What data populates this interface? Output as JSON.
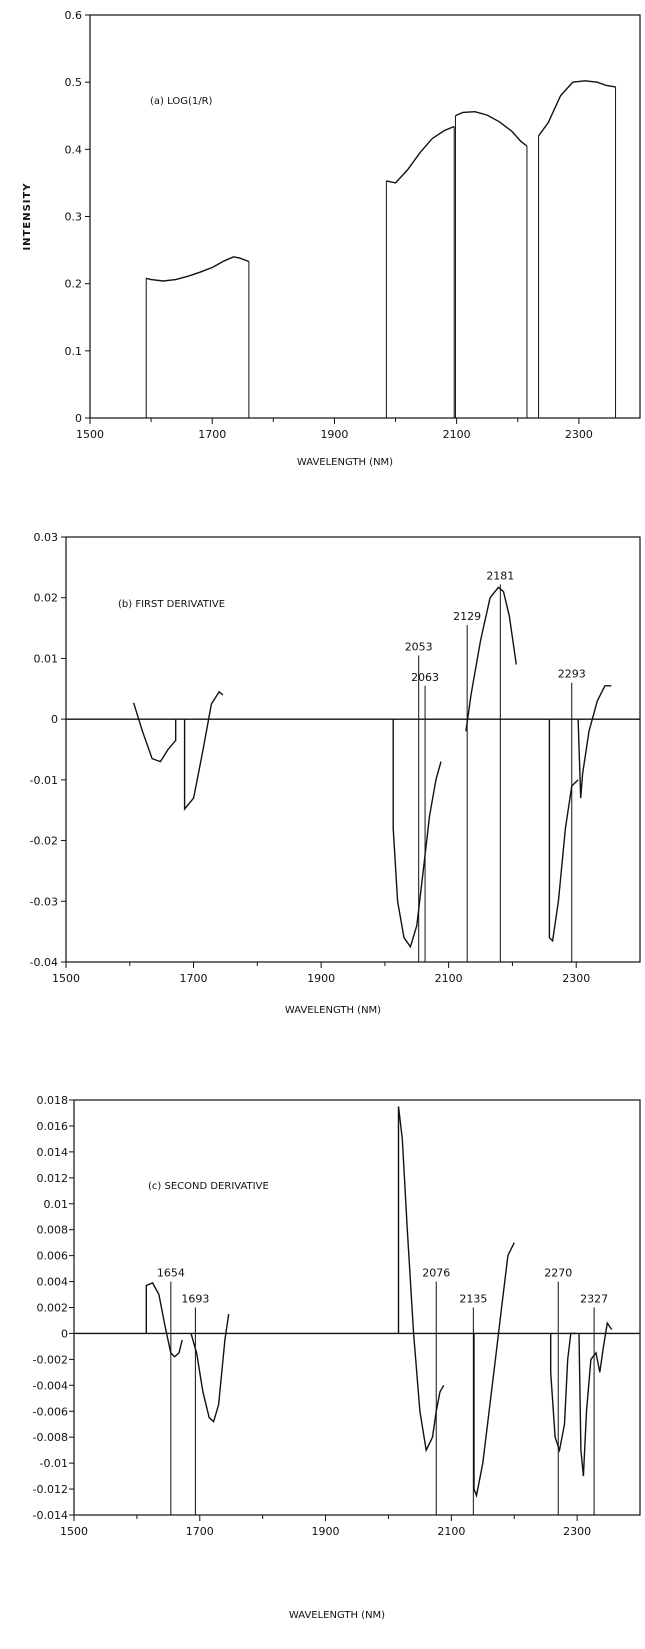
{
  "chart_data": [
    {
      "type": "line",
      "panel_label": "(a) LOG(1/R)",
      "ylabel": "INTENSITY",
      "xlabel": "WAVELENGTH (NM)",
      "xlim": [
        1500,
        2400
      ],
      "ylim": [
        0,
        0.6
      ],
      "x_ticks": [
        1500,
        1700,
        1900,
        2100,
        2300
      ],
      "y_ticks": [
        "0",
        "0.1",
        "0.2",
        "0.3",
        "0.4",
        "0.5",
        "0.6"
      ],
      "y_tick_values": [
        0,
        0.1,
        0.2,
        0.3,
        0.4,
        0.5,
        0.6
      ],
      "baseline": 0,
      "segments": [
        {
          "x": [
            1592,
            1600,
            1620,
            1640,
            1660,
            1680,
            1700,
            1720,
            1735,
            1745,
            1760
          ],
          "y": [
            0.208,
            0.206,
            0.204,
            0.206,
            0.211,
            0.217,
            0.224,
            0.234,
            0.24,
            0.238,
            0.233
          ]
        },
        {
          "x": [
            1985,
            2000,
            2020,
            2040,
            2060,
            2080,
            2096
          ],
          "y": [
            0.353,
            0.35,
            0.37,
            0.395,
            0.416,
            0.428,
            0.434
          ]
        },
        {
          "x": [
            2098,
            2110,
            2130,
            2150,
            2170,
            2190,
            2205,
            2215
          ],
          "y": [
            0.45,
            0.455,
            0.456,
            0.451,
            0.441,
            0.427,
            0.412,
            0.405
          ]
        },
        {
          "x": [
            2234,
            2250,
            2270,
            2290,
            2310,
            2330,
            2345,
            2360
          ],
          "y": [
            0.42,
            0.44,
            0.48,
            0.5,
            0.502,
            0.5,
            0.495,
            0.493
          ]
        }
      ],
      "markers": [],
      "grid": false
    },
    {
      "type": "line",
      "panel_label": "(b) FIRST DERIVATIVE",
      "ylabel": "",
      "xlabel": "WAVELENGTH (NM)",
      "xlim": [
        1500,
        2400
      ],
      "ylim": [
        -0.04,
        0.03
      ],
      "x_ticks": [
        1500,
        1700,
        1900,
        2100,
        2300
      ],
      "y_ticks": [
        "0.03",
        "0.02",
        "0.01",
        "0",
        "-0.01",
        "-0.02",
        "-0.03",
        "-0.04"
      ],
      "y_tick_values": [
        0.03,
        0.02,
        0.01,
        0,
        -0.01,
        -0.02,
        -0.03,
        -0.04
      ],
      "baseline": 0,
      "segments": [
        {
          "x": [
            1606,
            1620,
            1635,
            1648,
            1660,
            1672,
            1672
          ],
          "y": [
            0.0027,
            -0.002,
            -0.0065,
            -0.007,
            -0.005,
            -0.0035,
            0
          ]
        },
        {
          "x": [
            1686,
            1686,
            1700,
            1715,
            1728,
            1740,
            1746
          ],
          "y": [
            0,
            -0.0148,
            -0.013,
            -0.005,
            0.0025,
            0.0045,
            0.004
          ]
        },
        {
          "x": [
            2013,
            2013,
            2020,
            2030,
            2040,
            2050,
            2060,
            2070,
            2080,
            2088
          ],
          "y": [
            0,
            -0.018,
            -0.03,
            -0.036,
            -0.0375,
            -0.034,
            -0.025,
            -0.016,
            -0.01,
            -0.007
          ]
        },
        {
          "x": [
            2127,
            2135,
            2150,
            2165,
            2178,
            2186,
            2195,
            2206
          ],
          "y": [
            -0.002,
            0.004,
            0.013,
            0.02,
            0.0217,
            0.021,
            0.017,
            0.009
          ]
        },
        {
          "x": [
            2258,
            2258,
            2263,
            2272,
            2283,
            2293,
            2303
          ],
          "y": [
            0,
            -0.036,
            -0.0365,
            -0.03,
            -0.018,
            -0.011,
            -0.01
          ]
        },
        {
          "x": [
            2303,
            2307,
            2310,
            2320,
            2333,
            2345,
            2355
          ],
          "y": [
            0,
            -0.013,
            -0.009,
            -0.002,
            0.003,
            0.0055,
            0.0055
          ]
        }
      ],
      "markers": [
        {
          "x": 2053,
          "y": 0.0105,
          "label": "2053"
        },
        {
          "x": 2063,
          "y": 0.0055,
          "label": "2063"
        },
        {
          "x": 2129,
          "y": 0.0155,
          "label": "2129"
        },
        {
          "x": 2181,
          "y": 0.0222,
          "label": "2181"
        },
        {
          "x": 2293,
          "y": 0.006,
          "label": "2293"
        }
      ],
      "grid": false
    },
    {
      "type": "line",
      "panel_label": "(c) SECOND DERIVATIVE",
      "ylabel": "",
      "xlabel": "WAVELENGTH (NM)",
      "xlim": [
        1500,
        2400
      ],
      "ylim": [
        -0.014,
        0.018
      ],
      "x_ticks": [
        1500,
        1700,
        1900,
        2100,
        2300
      ],
      "y_ticks": [
        "0.018",
        "0.016",
        "0.014",
        "0.012",
        "0.01",
        "0.008",
        "0.006",
        "0.004",
        "0.002",
        "0",
        "-0.002",
        "-0.004",
        "-0.006",
        "-0.008",
        "-0.01",
        "-0.012",
        "-0.014"
      ],
      "y_tick_values": [
        0.018,
        0.016,
        0.014,
        0.012,
        0.01,
        0.008,
        0.006,
        0.004,
        0.002,
        0,
        -0.002,
        -0.004,
        -0.006,
        -0.008,
        -0.01,
        -0.012,
        -0.014
      ],
      "baseline": 0,
      "segments": [
        {
          "x": [
            1615,
            1615,
            1625,
            1635,
            1645,
            1654,
            1660,
            1667,
            1672
          ],
          "y": [
            0,
            0.0037,
            0.0039,
            0.003,
            0.0005,
            -0.0015,
            -0.0018,
            -0.0015,
            -0.0005
          ]
        },
        {
          "x": [
            1686,
            1695,
            1705,
            1715,
            1722,
            1730,
            1740,
            1746
          ],
          "y": [
            0,
            -0.0015,
            -0.0045,
            -0.0065,
            -0.0068,
            -0.0055,
            -0.0005,
            0.0015
          ]
        },
        {
          "x": [
            2016,
            2016,
            2022,
            2030,
            2040,
            2050,
            2060,
            2070,
            2076,
            2082,
            2088
          ],
          "y": [
            0,
            0.0175,
            0.015,
            0.008,
            0.0,
            -0.006,
            -0.009,
            -0.008,
            -0.006,
            -0.0045,
            -0.004
          ]
        },
        {
          "x": [
            2136,
            2136,
            2140,
            2150,
            2160,
            2170,
            2180,
            2190,
            2200
          ],
          "y": [
            0,
            -0.012,
            -0.0125,
            -0.01,
            -0.006,
            -0.002,
            0.002,
            0.006,
            0.007
          ]
        },
        {
          "x": [
            2258,
            2258,
            2265,
            2272,
            2280,
            2285,
            2290,
            2298
          ],
          "y": [
            0,
            -0.003,
            -0.008,
            -0.009,
            -0.007,
            -0.002,
            0.0,
            0.0
          ]
        },
        {
          "x": [
            2303,
            2306,
            2310,
            2315,
            2322,
            2330,
            2336,
            2342,
            2348,
            2355
          ],
          "y": [
            0,
            -0.009,
            -0.011,
            -0.006,
            -0.002,
            -0.0015,
            -0.003,
            -0.001,
            0.0008,
            0.0003
          ]
        }
      ],
      "markers": [
        {
          "x": 1654,
          "y": 0.004,
          "label": "1654"
        },
        {
          "x": 1693,
          "y": 0.002,
          "label": "1693"
        },
        {
          "x": 2076,
          "y": 0.004,
          "label": "2076"
        },
        {
          "x": 2135,
          "y": 0.002,
          "label": "2135"
        },
        {
          "x": 2270,
          "y": 0.004,
          "label": "2270"
        },
        {
          "x": 2327,
          "y": 0.002,
          "label": "2327"
        }
      ],
      "grid": false
    }
  ]
}
